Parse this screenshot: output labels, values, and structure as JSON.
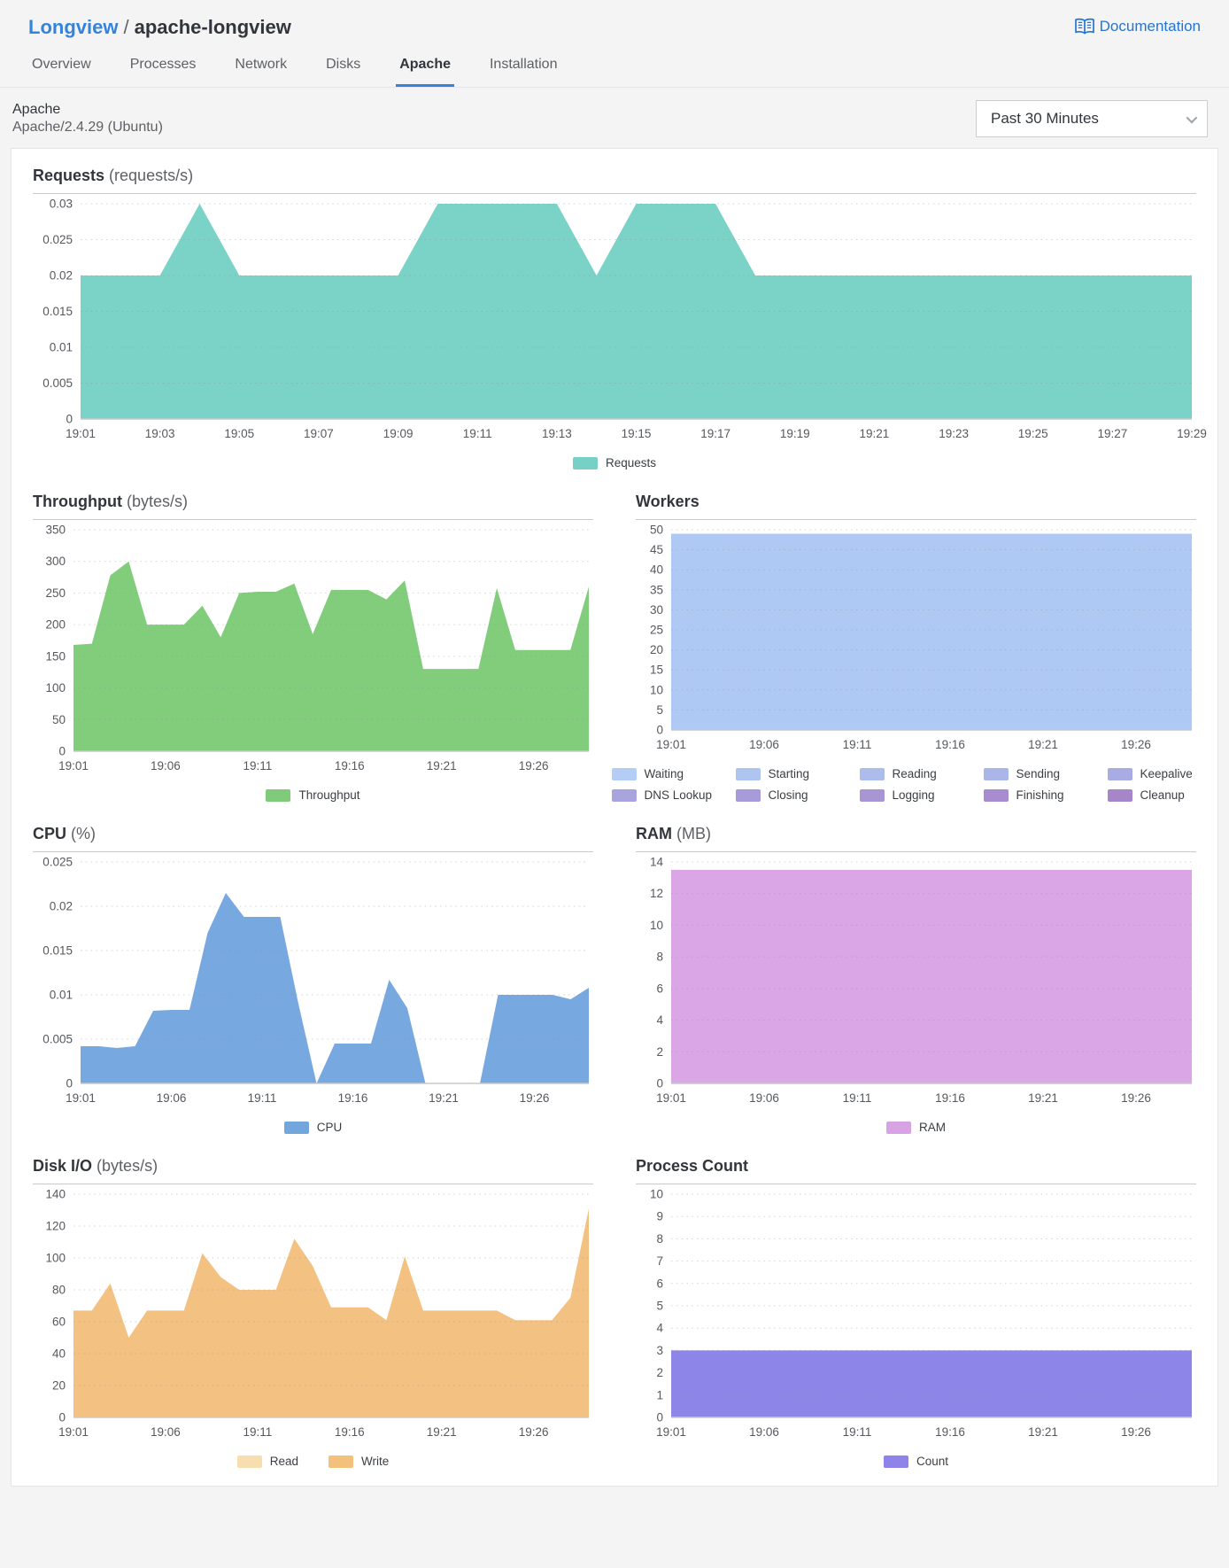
{
  "page": {
    "background": "#f4f4f4",
    "accent": "#3683dc"
  },
  "header": {
    "breadcrumb": {
      "root": "Longview",
      "separator": "/",
      "current": "apache-longview"
    },
    "documentation_label": "Documentation"
  },
  "tabs": {
    "items": [
      {
        "label": "Overview",
        "active": false
      },
      {
        "label": "Processes",
        "active": false
      },
      {
        "label": "Network",
        "active": false
      },
      {
        "label": "Disks",
        "active": false
      },
      {
        "label": "Apache",
        "active": true
      },
      {
        "label": "Installation",
        "active": false
      }
    ]
  },
  "section": {
    "title": "Apache",
    "subtitle": "Apache/2.4.29 (Ubuntu)",
    "range_select": {
      "value": "Past 30 Minutes"
    }
  },
  "x_times": [
    "19:01",
    "19:02",
    "19:03",
    "19:04",
    "19:05",
    "19:06",
    "19:07",
    "19:08",
    "19:09",
    "19:10",
    "19:11",
    "19:12",
    "19:13",
    "19:14",
    "19:15",
    "19:16",
    "19:17",
    "19:18",
    "19:19",
    "19:20",
    "19:21",
    "19:22",
    "19:23",
    "19:24",
    "19:25",
    "19:26",
    "19:27",
    "19:28",
    "19:29"
  ],
  "chart_data": [
    {
      "id": "requests",
      "type": "area",
      "title": "Requests",
      "unit": "(requests/s)",
      "x_labels": [
        "19:01",
        "19:03",
        "19:05",
        "19:07",
        "19:09",
        "19:11",
        "19:13",
        "19:15",
        "19:17",
        "19:19",
        "19:21",
        "19:23",
        "19:25",
        "19:27",
        "19:29"
      ],
      "x_label_offsets": [
        0,
        2,
        4,
        6,
        8,
        10,
        12,
        14,
        16,
        18,
        20,
        22,
        24,
        26,
        28
      ],
      "ylim": [
        0,
        0.03
      ],
      "yticks": [
        "0",
        "0.005",
        "0.01",
        "0.015",
        "0.02",
        "0.025",
        "0.03"
      ],
      "grid": "dotted",
      "legend_rows": [
        [
          {
            "label": "Requests",
            "color": "#76d0c5"
          }
        ]
      ],
      "series": [
        {
          "name": "Requests",
          "color": "#7bd2c6",
          "values": [
            0.02,
            0.02,
            0.02,
            0.03,
            0.02,
            0.02,
            0.02,
            0.02,
            0.02,
            0.03,
            0.03,
            0.03,
            0.03,
            0.02,
            0.03,
            0.03,
            0.03,
            0.02,
            0.02,
            0.02,
            0.02,
            0.02,
            0.02,
            0.02,
            0.02,
            0.02,
            0.02,
            0.02,
            0.02
          ]
        }
      ]
    },
    {
      "id": "throughput",
      "type": "area",
      "title": "Throughput",
      "unit": "(bytes/s)",
      "x_labels": [
        "19:01",
        "19:06",
        "19:11",
        "19:16",
        "19:21",
        "19:26"
      ],
      "x_label_offsets": [
        0,
        5,
        10,
        15,
        20,
        25
      ],
      "ylim": [
        0,
        350
      ],
      "yticks": [
        "0",
        "50",
        "100",
        "150",
        "200",
        "250",
        "300",
        "350"
      ],
      "grid": "dotted",
      "legend_rows": [
        [
          {
            "label": "Throughput",
            "color": "#7fcb79"
          }
        ]
      ],
      "series": [
        {
          "name": "Throughput",
          "color": "#82cd7c",
          "values": [
            168,
            170,
            278,
            300,
            200,
            200,
            200,
            230,
            180,
            250,
            252,
            252,
            265,
            185,
            255,
            255,
            255,
            240,
            270,
            130,
            130,
            130,
            130,
            258,
            160,
            160,
            160,
            160,
            260
          ]
        }
      ]
    },
    {
      "id": "workers",
      "type": "area",
      "title": "Workers",
      "unit": "",
      "x_labels": [
        "19:01",
        "19:06",
        "19:11",
        "19:16",
        "19:21",
        "19:26"
      ],
      "x_label_offsets": [
        0,
        5,
        10,
        15,
        20,
        25
      ],
      "ylim": [
        0,
        50
      ],
      "yticks": [
        "0",
        "5",
        "10",
        "15",
        "20",
        "25",
        "30",
        "35",
        "40",
        "45",
        "50"
      ],
      "grid": "dotted",
      "legend_rows": [
        [
          {
            "label": "Waiting",
            "color": "#b4cdf4"
          },
          {
            "label": "Starting",
            "color": "#aec5f0"
          },
          {
            "label": "Reading",
            "color": "#acbdec"
          },
          {
            "label": "Sending",
            "color": "#aab5e8"
          },
          {
            "label": "Keepalive",
            "color": "#a9ace3"
          }
        ],
        [
          {
            "label": "DNS Lookup",
            "color": "#a8a4de"
          },
          {
            "label": "Closing",
            "color": "#a79cd9"
          },
          {
            "label": "Logging",
            "color": "#a795d4"
          },
          {
            "label": "Finishing",
            "color": "#a78dcf"
          },
          {
            "label": "Cleanup",
            "color": "#a785c9"
          }
        ]
      ],
      "series": [
        {
          "name": "Waiting",
          "color": "#aecaf4",
          "values": [
            49,
            49,
            49,
            49,
            49,
            49,
            49,
            49,
            49,
            49,
            49,
            49,
            49,
            49,
            49,
            49,
            49,
            49,
            49,
            49,
            49,
            49,
            49,
            49,
            49,
            49,
            49,
            49,
            49
          ]
        }
      ]
    },
    {
      "id": "cpu",
      "type": "area",
      "title": "CPU",
      "unit": "(%)",
      "x_labels": [
        "19:01",
        "19:06",
        "19:11",
        "19:16",
        "19:21",
        "19:26"
      ],
      "x_label_offsets": [
        0,
        5,
        10,
        15,
        20,
        25
      ],
      "ylim": [
        0,
        0.025
      ],
      "yticks": [
        "0",
        "0.005",
        "0.01",
        "0.015",
        "0.02",
        "0.025"
      ],
      "grid": "dotted",
      "legend_rows": [
        [
          {
            "label": "CPU",
            "color": "#74a6de"
          }
        ]
      ],
      "series": [
        {
          "name": "CPU",
          "color": "#77a8e0",
          "values": [
            0.0042,
            0.0042,
            0.004,
            0.0042,
            0.0082,
            0.0083,
            0.0083,
            0.017,
            0.0215,
            0.0188,
            0.0188,
            0.0188,
            0.009,
            0,
            0.0045,
            0.0045,
            0.0045,
            0.0117,
            0.0085,
            0,
            0,
            0,
            0,
            0.01,
            0.01,
            0.01,
            0.01,
            0.0095,
            0.0108
          ]
        }
      ]
    },
    {
      "id": "ram",
      "type": "area",
      "title": "RAM",
      "unit": "(MB)",
      "x_labels": [
        "19:01",
        "19:06",
        "19:11",
        "19:16",
        "19:21",
        "19:26"
      ],
      "x_label_offsets": [
        0,
        5,
        10,
        15,
        20,
        25
      ],
      "ylim": [
        0,
        14
      ],
      "yticks": [
        "0",
        "2",
        "4",
        "6",
        "8",
        "10",
        "12",
        "14"
      ],
      "grid": "dotted",
      "legend_rows": [
        [
          {
            "label": "RAM",
            "color": "#d8a3e5"
          }
        ]
      ],
      "series": [
        {
          "name": "RAM",
          "color": "#daa6e6",
          "values": [
            13.5,
            13.5,
            13.5,
            13.5,
            13.5,
            13.5,
            13.5,
            13.5,
            13.5,
            13.5,
            13.5,
            13.5,
            13.5,
            13.5,
            13.5,
            13.5,
            13.5,
            13.5,
            13.5,
            13.5,
            13.5,
            13.5,
            13.5,
            13.5,
            13.5,
            13.5,
            13.5,
            13.5,
            13.5
          ]
        }
      ]
    },
    {
      "id": "disk-io",
      "type": "area",
      "title": "Disk I/O",
      "unit": "(bytes/s)",
      "x_labels": [
        "19:01",
        "19:06",
        "19:11",
        "19:16",
        "19:21",
        "19:26"
      ],
      "x_label_offsets": [
        0,
        5,
        10,
        15,
        20,
        25
      ],
      "ylim": [
        0,
        140
      ],
      "yticks": [
        "0",
        "20",
        "40",
        "60",
        "80",
        "100",
        "120",
        "140"
      ],
      "grid": "dotted",
      "legend_rows": [
        [
          {
            "label": "Read",
            "color": "#f8deae"
          },
          {
            "label": "Write",
            "color": "#f4c17d"
          }
        ]
      ],
      "series": [
        {
          "name": "Read",
          "color": "#f8deae",
          "values": [
            0,
            0,
            0,
            0,
            0,
            0,
            0,
            0,
            0,
            0,
            0,
            0,
            0,
            0,
            0,
            0,
            0,
            0,
            0,
            0,
            0,
            0,
            0,
            0,
            0,
            0,
            0,
            0,
            0
          ]
        },
        {
          "name": "Write",
          "color": "#f3c282",
          "values": [
            67,
            67,
            84,
            50,
            67,
            67,
            67,
            103,
            88,
            80,
            80,
            80,
            112,
            95,
            69,
            69,
            69,
            61,
            101,
            67,
            67,
            67,
            67,
            67,
            61,
            61,
            61,
            75,
            131
          ]
        }
      ]
    },
    {
      "id": "process-count",
      "type": "area",
      "title": "Process Count",
      "unit": "",
      "x_labels": [
        "19:01",
        "19:06",
        "19:11",
        "19:16",
        "19:21",
        "19:26"
      ],
      "x_label_offsets": [
        0,
        5,
        10,
        15,
        20,
        25
      ],
      "ylim": [
        0,
        10
      ],
      "yticks": [
        "0",
        "1",
        "2",
        "3",
        "4",
        "5",
        "6",
        "7",
        "8",
        "9",
        "10"
      ],
      "grid": "dotted",
      "legend_rows": [
        [
          {
            "label": "Count",
            "color": "#8d83e8"
          }
        ]
      ],
      "series": [
        {
          "name": "Count",
          "color": "#8e85e8",
          "values": [
            3,
            3,
            3,
            3,
            3,
            3,
            3,
            3,
            3,
            3,
            3,
            3,
            3,
            3,
            3,
            3,
            3,
            3,
            3,
            3,
            3,
            3,
            3,
            3,
            3,
            3,
            3,
            3,
            3
          ]
        }
      ]
    }
  ]
}
